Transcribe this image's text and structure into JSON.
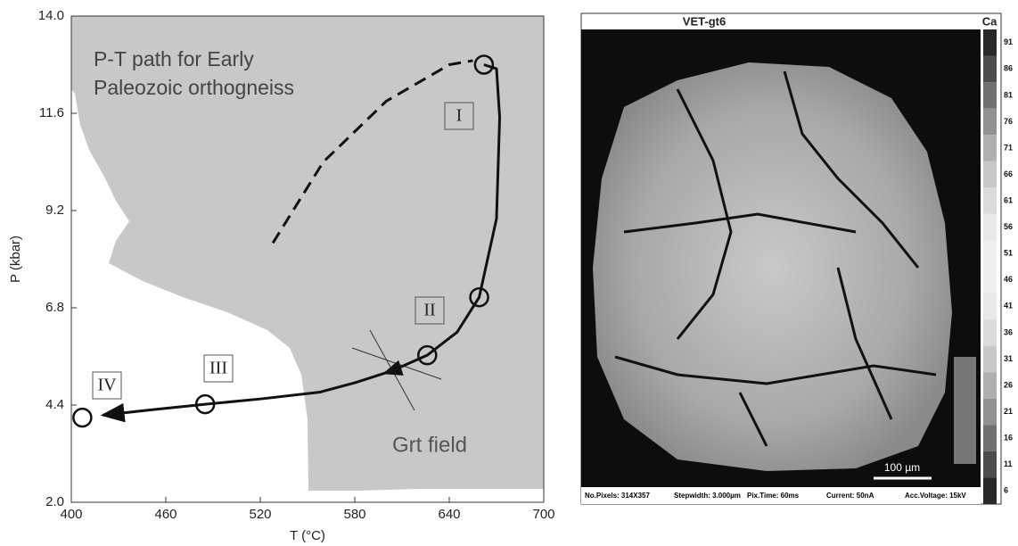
{
  "chart_data": {
    "type": "line",
    "x_label": "T (°C)",
    "y_label": "P (kbar)",
    "xlim": [
      400,
      700
    ],
    "xticks": [
      400,
      460,
      520,
      580,
      640,
      700
    ],
    "ylim": [
      2,
      14
    ],
    "yticks": [
      {
        "value": 2,
        "label": "2.0"
      },
      4.4,
      6.8,
      9.2,
      11.6,
      {
        "value": 14,
        "label": "14.0"
      }
    ],
    "lines": [
      {
        "style": "solid",
        "color": "#111",
        "x": [
          662,
          670,
          672,
          670,
          659,
          645,
          626,
          604,
          580,
          558,
          520,
          485,
          450,
          420
        ],
        "y": [
          12.8,
          12.7,
          11.5,
          9.0,
          7.06,
          6.2,
          5.63,
          5.25,
          4.95,
          4.72,
          4.55,
          4.42,
          4.28,
          4.15
        ]
      },
      {
        "style": "dashed",
        "color": "#111",
        "x": [
          528,
          560,
          600,
          640,
          655
        ],
        "y": [
          8.4,
          10.4,
          11.9,
          12.8,
          12.9
        ]
      }
    ],
    "points": {
      "x": [
        662,
        659,
        626,
        485,
        407
      ],
      "y": [
        12.8,
        7.06,
        5.63,
        4.42,
        4.09
      ]
    },
    "stage_labels": [
      "I",
      "II",
      "III",
      "IV"
    ],
    "annotations": [
      "P-T path for Early",
      "Paleozoic orthogneiss",
      "Grt field"
    ],
    "field_color": "#c8c8c8"
  },
  "image_panel": {
    "title": "VET-gt6",
    "element": "Ca",
    "colorbar": [
      91,
      86,
      81,
      76,
      71,
      66,
      61,
      56,
      51,
      46,
      41,
      36,
      31,
      26,
      21,
      16,
      11,
      6
    ],
    "scale_bar": "100 µm",
    "footer": [
      "No.Pixels: 314X357",
      "Stepwidth: 3.000µm",
      "Pix.Time: 60ms",
      "Current: 50nA",
      "Acc.Voltage: 15kV"
    ]
  }
}
